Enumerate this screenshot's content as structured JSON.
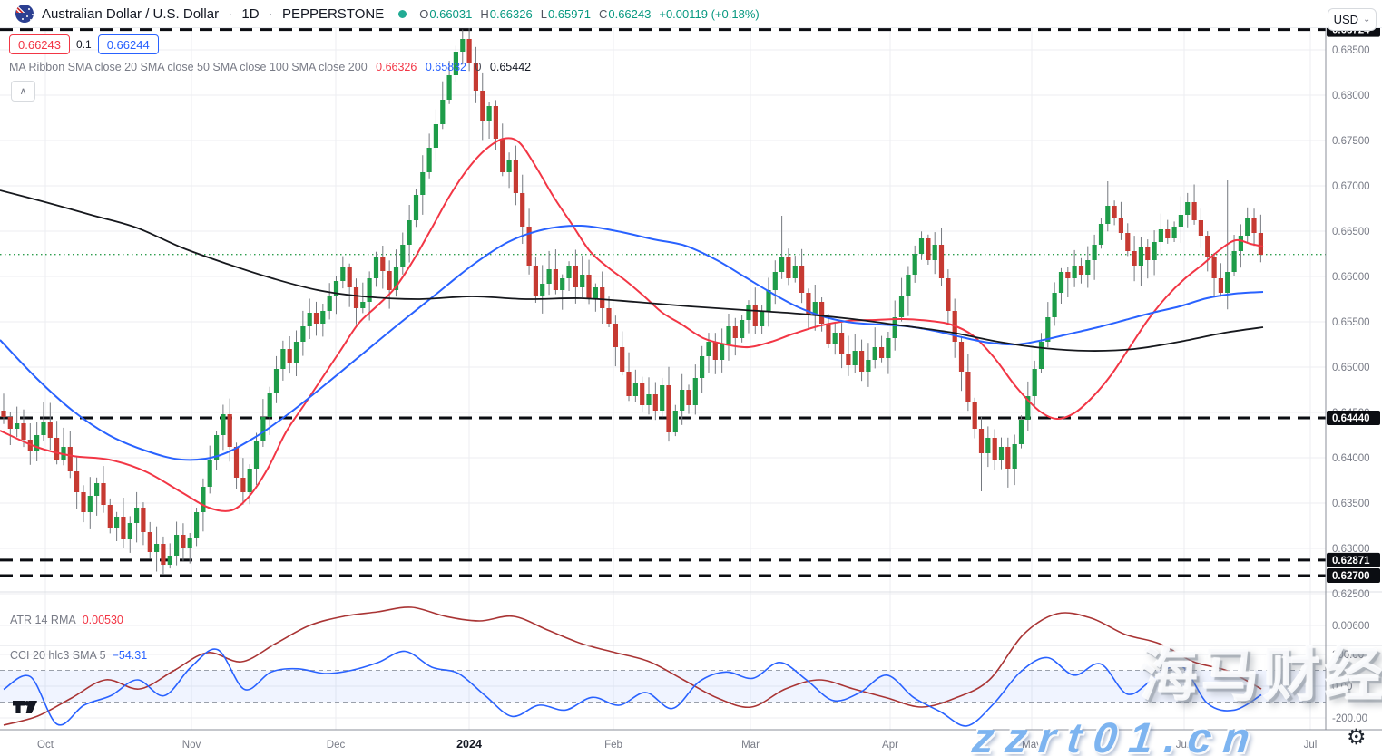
{
  "header": {
    "symbol": "Australian Dollar / U.S. Dollar",
    "separator": "·",
    "timeframe": "1D",
    "exchange": "PEPPERSTONE",
    "ohlc": {
      "o_label": "O",
      "o": "0.66031",
      "h_label": "H",
      "h": "0.66326",
      "l_label": "L",
      "l": "0.65971",
      "c_label": "C",
      "c": "0.66243",
      "change": "+0.00119 (+0.18%)"
    },
    "currency": "USD",
    "chevron": "⌄"
  },
  "quote_panel": {
    "sell": "0.66243",
    "spread": "0.1",
    "buy": "0.66244"
  },
  "ma_legend": {
    "title": "MA Ribbon SMA close 20 SMA close 50 SMA close 100 SMA close 200",
    "value_sma20": "0.66326",
    "value_sma50": "0.65832",
    "value_sma100_partial": "0",
    "value_sma200": "0.65442",
    "collapse_glyph": "∧"
  },
  "atr": {
    "label": "ATR 14 RMA",
    "value": "0.00530"
  },
  "cci": {
    "label": "CCI 20 hlc3 SMA 5",
    "value": "−54.31"
  },
  "watermark": {
    "cn": "海马财经",
    "url": "zzrt01.cn",
    "gear": "⚙"
  },
  "chart_data": {
    "type": "candlestick",
    "title": "Australian Dollar / U.S. Dollar · 1D · PEPPERSTONE",
    "ohlc_current": {
      "open": 0.66031,
      "high": 0.66326,
      "low": 0.65971,
      "close": 0.66243,
      "change": 0.00119,
      "change_pct": 0.18
    },
    "price_axis_ticks": [
      "0.68500",
      "0.68000",
      "0.67500",
      "0.67000",
      "0.66500",
      "0.66000",
      "0.65500",
      "0.65000",
      "0.64500",
      "0.64000",
      "0.63500",
      "0.63000",
      "0.62500"
    ],
    "levels": [
      {
        "label": "0.68724"
      },
      {
        "label": "0.64440"
      },
      {
        "label": "0.62871"
      },
      {
        "label": "0.62700"
      }
    ],
    "last_price_line": {
      "price": 0.66243,
      "color": "#2f9e4f"
    },
    "months": [
      [
        "Oct",
        50
      ],
      [
        "Nov",
        211
      ],
      [
        "Dec",
        370
      ],
      [
        "2024",
        517
      ],
      [
        "Feb",
        676
      ],
      [
        "Mar",
        827
      ],
      [
        "Apr",
        981
      ],
      [
        "May",
        1137
      ],
      [
        "Jun",
        1305
      ],
      [
        "Jul",
        1444
      ]
    ],
    "candles": {
      "first_open": 0.6452,
      "up_color": "#1e9c49",
      "down_color": "#c63a32",
      "wick_color": "#75797f",
      "closes": [
        0.6445,
        0.6432,
        0.6438,
        0.642,
        0.6408,
        0.6425,
        0.644,
        0.6422,
        0.6398,
        0.6412,
        0.6385,
        0.6362,
        0.634,
        0.6358,
        0.6372,
        0.6348,
        0.6322,
        0.6335,
        0.631,
        0.6328,
        0.6345,
        0.6318,
        0.6296,
        0.6305,
        0.6282,
        0.6292,
        0.6315,
        0.63,
        0.6312,
        0.634,
        0.6368,
        0.6398,
        0.6425,
        0.6448,
        0.6412,
        0.6378,
        0.6362,
        0.6388,
        0.6418,
        0.6445,
        0.6472,
        0.6498,
        0.652,
        0.6505,
        0.6528,
        0.6545,
        0.656,
        0.6548,
        0.6562,
        0.6578,
        0.6595,
        0.661,
        0.6588,
        0.6565,
        0.6572,
        0.6598,
        0.6622,
        0.6606,
        0.6585,
        0.661,
        0.6635,
        0.6662,
        0.669,
        0.6715,
        0.6742,
        0.6768,
        0.6795,
        0.6822,
        0.6848,
        0.6862,
        0.6836,
        0.6805,
        0.6772,
        0.6788,
        0.6752,
        0.6715,
        0.6728,
        0.6692,
        0.6655,
        0.6612,
        0.6578,
        0.6592,
        0.6608,
        0.6585,
        0.6598,
        0.6612,
        0.6588,
        0.6602,
        0.6575,
        0.6588,
        0.6565,
        0.6548,
        0.6522,
        0.6495,
        0.6468,
        0.6482,
        0.6458,
        0.647,
        0.6452,
        0.648,
        0.6428,
        0.6452,
        0.6475,
        0.6458,
        0.6488,
        0.6512,
        0.6528,
        0.6508,
        0.6525,
        0.6545,
        0.6532,
        0.6552,
        0.6568,
        0.6545,
        0.6562,
        0.6585,
        0.6605,
        0.6622,
        0.6598,
        0.6612,
        0.6582,
        0.6558,
        0.6572,
        0.6548,
        0.6525,
        0.6538,
        0.6515,
        0.6502,
        0.6518,
        0.6495,
        0.6508,
        0.6522,
        0.651,
        0.6532,
        0.6555,
        0.6578,
        0.6602,
        0.6625,
        0.6642,
        0.6618,
        0.6635,
        0.6598,
        0.6562,
        0.6528,
        0.6495,
        0.6462,
        0.6432,
        0.6405,
        0.6422,
        0.6398,
        0.6412,
        0.6388,
        0.6415,
        0.6442,
        0.6468,
        0.6498,
        0.6528,
        0.6555,
        0.6582,
        0.6605,
        0.6598,
        0.6612,
        0.6602,
        0.6618,
        0.6635,
        0.6658,
        0.6678,
        0.6665,
        0.6648,
        0.6628,
        0.6612,
        0.6632,
        0.6618,
        0.6638,
        0.6652,
        0.6642,
        0.6655,
        0.6668,
        0.6682,
        0.6662,
        0.6645,
        0.6622,
        0.6598,
        0.6582,
        0.6605,
        0.6628,
        0.6645,
        0.6665,
        0.6648,
        0.6624
      ],
      "high_overrides": {
        "69": 0.68724,
        "117": 0.6667,
        "166": 0.6705,
        "184": 0.6706
      },
      "low_overrides": {
        "24": 0.6271,
        "147": 0.6363
      }
    },
    "ma_lines": [
      {
        "name": "SMA 20",
        "color": "#f23645",
        "width": 2,
        "points": [
          [
            0,
            0.643
          ],
          [
            40,
            0.6412
          ],
          [
            80,
            0.6402
          ],
          [
            120,
            0.6398
          ],
          [
            160,
            0.6385
          ],
          [
            200,
            0.6362
          ],
          [
            230,
            0.6345
          ],
          [
            255,
            0.6342
          ],
          [
            275,
            0.6358
          ],
          [
            295,
            0.6388
          ],
          [
            315,
            0.6428
          ],
          [
            335,
            0.6458
          ],
          [
            355,
            0.6488
          ],
          [
            375,
            0.6518
          ],
          [
            395,
            0.6548
          ],
          [
            415,
            0.6567
          ],
          [
            435,
            0.6587
          ],
          [
            455,
            0.6617
          ],
          [
            475,
            0.6652
          ],
          [
            495,
            0.6688
          ],
          [
            515,
            0.6718
          ],
          [
            535,
            0.674
          ],
          [
            555,
            0.6752
          ],
          [
            572,
            0.6748
          ],
          [
            590,
            0.6722
          ],
          [
            610,
            0.6688
          ],
          [
            630,
            0.6658
          ],
          [
            650,
            0.6628
          ],
          [
            670,
            0.661
          ],
          [
            690,
            0.6595
          ],
          [
            710,
            0.6578
          ],
          [
            730,
            0.656
          ],
          [
            750,
            0.6548
          ],
          [
            775,
            0.6532
          ],
          [
            800,
            0.6525
          ],
          [
            825,
            0.6522
          ],
          [
            850,
            0.6528
          ],
          [
            875,
            0.6537
          ],
          [
            905,
            0.6546
          ],
          [
            935,
            0.6551
          ],
          [
            965,
            0.6552
          ],
          [
            995,
            0.6553
          ],
          [
            1025,
            0.6551
          ],
          [
            1048,
            0.6547
          ],
          [
            1072,
            0.6535
          ],
          [
            1096,
            0.651
          ],
          [
            1120,
            0.6478
          ],
          [
            1145,
            0.6452
          ],
          [
            1165,
            0.6443
          ],
          [
            1185,
            0.645
          ],
          [
            1205,
            0.6468
          ],
          [
            1225,
            0.6492
          ],
          [
            1245,
            0.6522
          ],
          [
            1265,
            0.6552
          ],
          [
            1285,
            0.6577
          ],
          [
            1305,
            0.6597
          ],
          [
            1325,
            0.6613
          ],
          [
            1345,
            0.663
          ],
          [
            1362,
            0.664
          ],
          [
            1378,
            0.6636
          ],
          [
            1392,
            0.6633
          ]
        ]
      },
      {
        "name": "SMA 50",
        "color": "#2962ff",
        "width": 2,
        "points": [
          [
            0,
            0.653
          ],
          [
            40,
            0.6488
          ],
          [
            80,
            0.6452
          ],
          [
            120,
            0.6425
          ],
          [
            160,
            0.6408
          ],
          [
            200,
            0.6398
          ],
          [
            240,
            0.6402
          ],
          [
            280,
            0.6422
          ],
          [
            320,
            0.645
          ],
          [
            360,
            0.6482
          ],
          [
            400,
            0.6515
          ],
          [
            440,
            0.6548
          ],
          [
            480,
            0.658
          ],
          [
            520,
            0.6612
          ],
          [
            560,
            0.6638
          ],
          [
            600,
            0.6652
          ],
          [
            640,
            0.6656
          ],
          [
            680,
            0.665
          ],
          [
            720,
            0.6641
          ],
          [
            755,
            0.6634
          ],
          [
            790,
            0.6618
          ],
          [
            820,
            0.66
          ],
          [
            850,
            0.6582
          ],
          [
            880,
            0.6566
          ],
          [
            910,
            0.6555
          ],
          [
            940,
            0.6549
          ],
          [
            970,
            0.6547
          ],
          [
            1000,
            0.6545
          ],
          [
            1030,
            0.654
          ],
          [
            1060,
            0.6533
          ],
          [
            1090,
            0.6527
          ],
          [
            1120,
            0.6525
          ],
          [
            1150,
            0.653
          ],
          [
            1180,
            0.6537
          ],
          [
            1210,
            0.6544
          ],
          [
            1240,
            0.6552
          ],
          [
            1270,
            0.656
          ],
          [
            1300,
            0.6567
          ],
          [
            1330,
            0.6576
          ],
          [
            1360,
            0.6581
          ],
          [
            1392,
            0.6583
          ]
        ]
      },
      {
        "name": "SMA 200",
        "color": "#16181d",
        "width": 1.8,
        "points": [
          [
            0,
            0.6695
          ],
          [
            50,
            0.6682
          ],
          [
            100,
            0.6668
          ],
          [
            150,
            0.6654
          ],
          [
            200,
            0.6632
          ],
          [
            250,
            0.6614
          ],
          [
            300,
            0.6598
          ],
          [
            350,
            0.6585
          ],
          [
            400,
            0.6578
          ],
          [
            460,
            0.6575
          ],
          [
            520,
            0.6578
          ],
          [
            580,
            0.6575
          ],
          [
            640,
            0.6576
          ],
          [
            700,
            0.6572
          ],
          [
            760,
            0.6567
          ],
          [
            820,
            0.6563
          ],
          [
            880,
            0.6559
          ],
          [
            940,
            0.6553
          ],
          [
            1000,
            0.6545
          ],
          [
            1050,
            0.6538
          ],
          [
            1100,
            0.6528
          ],
          [
            1150,
            0.6521
          ],
          [
            1200,
            0.6518
          ],
          [
            1250,
            0.652
          ],
          [
            1300,
            0.6528
          ],
          [
            1350,
            0.6538
          ],
          [
            1392,
            0.6544
          ]
        ]
      }
    ],
    "atr_pane": {
      "name": "ATR 14 RMA",
      "current": 0.0053,
      "tick": {
        "label": "0.00600",
        "value": 0.006
      },
      "color": "#a93434",
      "values": [
        0.0049,
        0.005,
        0.0052,
        0.0054,
        0.0053,
        0.0055,
        0.0057,
        0.0056,
        0.0058,
        0.006,
        0.0061,
        0.00615,
        0.0062,
        0.0061,
        0.00605,
        0.0061,
        0.00595,
        0.0058,
        0.0057,
        0.0056,
        0.0054,
        0.0052,
        0.0051,
        0.0053,
        0.0054,
        0.0053,
        0.0052,
        0.0051,
        0.0052,
        0.0054,
        0.0059,
        0.00613,
        0.00608,
        0.0059,
        0.0058,
        0.0056,
        0.0055,
        0.0053
      ]
    },
    "cci_pane": {
      "name": "CCI 20 hlc3 SMA 5",
      "current": -54.31,
      "ticks": [
        {
          "label": "200.00",
          "value": 200
        },
        {
          "label": "0.00",
          "value": 0
        },
        {
          "label": "-200.00",
          "value": -200
        }
      ],
      "band": [
        -100,
        100
      ],
      "color": "#2962ff",
      "values": [
        -20,
        60,
        -240,
        -120,
        -60,
        40,
        -60,
        120,
        230,
        -20,
        90,
        110,
        80,
        100,
        150,
        220,
        120,
        80,
        -60,
        -190,
        -120,
        -150,
        -70,
        -120,
        -40,
        -140,
        30,
        90,
        50,
        150,
        40,
        -90,
        -40,
        70,
        -70,
        -160,
        -250,
        -110,
        90,
        180,
        70,
        140,
        -50,
        50,
        130,
        -110,
        -150,
        -54.31
      ]
    }
  }
}
